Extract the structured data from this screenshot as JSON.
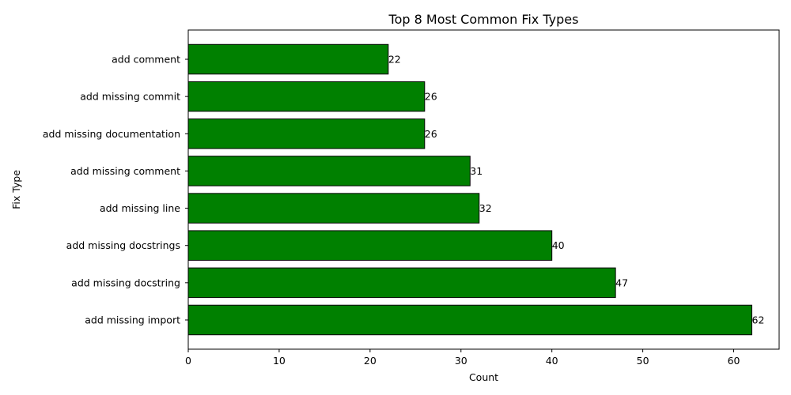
{
  "chart_data": {
    "type": "bar",
    "orientation": "horizontal",
    "title": "Top 8 Most Common Fix Types",
    "xlabel": "Count",
    "ylabel": "Fix Type",
    "categories": [
      "add missing import",
      "add missing docstring",
      "add missing docstrings",
      "add missing line",
      "add missing comment",
      "add missing documentation",
      "add missing commit",
      "add comment"
    ],
    "values": [
      62,
      47,
      40,
      32,
      31,
      26,
      26,
      22
    ],
    "xlim": [
      0,
      65
    ],
    "xticks": [
      0,
      10,
      20,
      30,
      40,
      50,
      60
    ],
    "grid": false,
    "legend": "none",
    "bar_color": "#008000",
    "bar_edge_color": "#000000"
  }
}
